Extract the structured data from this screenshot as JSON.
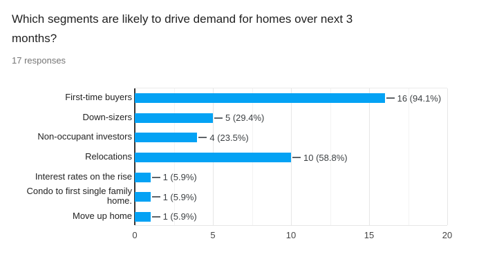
{
  "header": {
    "title": "Which segments are likely to drive demand for homes over next 3 months?",
    "responses": "17 responses"
  },
  "chart_data": {
    "type": "bar",
    "orientation": "horizontal",
    "title": "Which segments are likely to drive demand for homes over next 3 months?",
    "subtitle": "17 responses",
    "categories": [
      "First-time buyers",
      "Down-sizers",
      "Non-occupant investors",
      "Relocations",
      "Interest rates on the rise",
      "Condo to first single family home.",
      "Move up home"
    ],
    "values": [
      16,
      5,
      4,
      10,
      1,
      1,
      1
    ],
    "annotations": [
      "16 (94.1%)",
      "5 (29.4%)",
      "4 (23.5%)",
      "10 (58.8%)",
      "1 (5.9%)",
      "1 (5.9%)",
      "1 (5.9%)"
    ],
    "xlabel": "",
    "ylabel": "",
    "xlim": [
      0,
      20
    ],
    "xticks": [
      0,
      5,
      10,
      15,
      20
    ],
    "minor_tick_step": 2.5,
    "grid": true,
    "legend": "none",
    "colors": {
      "bar": "#04a2f4",
      "axis_line": "#333333",
      "major_gridline": "#e6e6e6",
      "minor_gridline": "#f3f3f3",
      "title_text": "#212121",
      "responses_text": "#757575",
      "category_text": "#222222",
      "annotation_text": "#3c4043",
      "tick_text": "#444444",
      "background": "#ffffff"
    }
  }
}
